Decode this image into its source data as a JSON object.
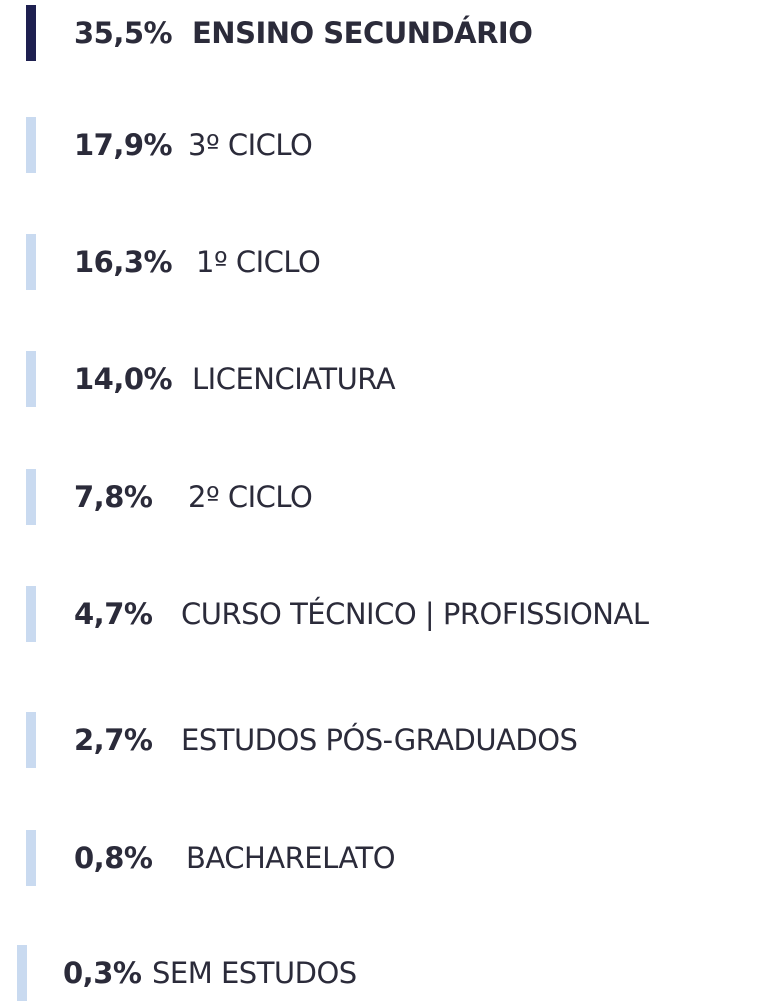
{
  "items": [
    {
      "percent": "35,5%",
      "label": "ENSINO SECUNDÁRIO"
    },
    {
      "percent": "17,9%",
      "label": "3º CICLO"
    },
    {
      "percent": "16,3%",
      "label": "1º CICLO"
    },
    {
      "percent": "14,0%",
      "label": "LICENCIATURA"
    },
    {
      "percent": "7,8%",
      "label": "2º CICLO"
    },
    {
      "percent": "4,7%",
      "label": "CURSO TÉCNICO | PROFISSIONAL"
    },
    {
      "percent": "2,7%",
      "label": "ESTUDOS PÓS-GRADUADOS"
    },
    {
      "percent": "0,8%",
      "label": "BACHARELATO"
    },
    {
      "percent": "0,3%",
      "label": "SEM ESTUDOS"
    }
  ]
}
